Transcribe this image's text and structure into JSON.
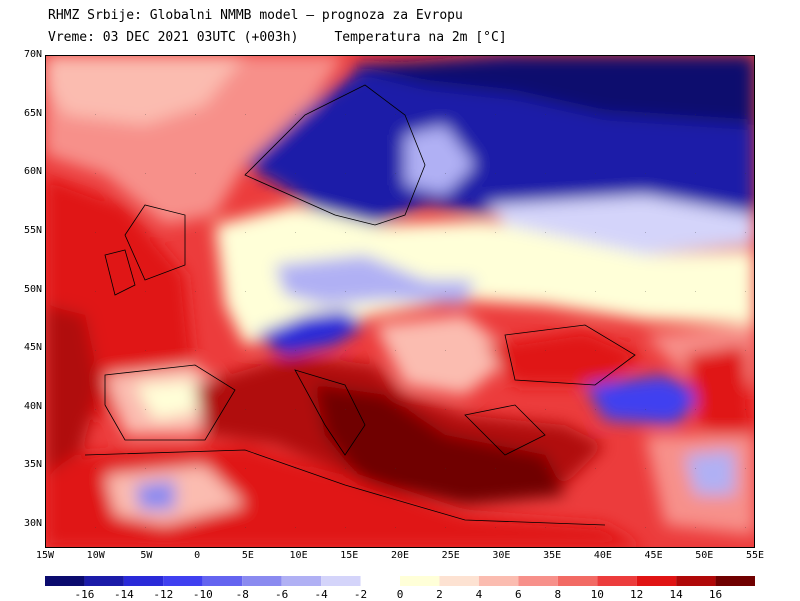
{
  "header": {
    "line1": "RHMZ Srbije: Globalni NMMB model – prognoza za Evropu",
    "line2_time": "Vreme: 03 DEC 2021 03UTC (+003h)",
    "line2_param": "Temperatura na 2m [°C]"
  },
  "axes": {
    "lat_labels": [
      "70N",
      "65N",
      "60N",
      "55N",
      "50N",
      "45N",
      "40N",
      "35N",
      "30N"
    ],
    "lon_labels": [
      "15W",
      "10W",
      "5W",
      "0",
      "5E",
      "10E",
      "15E",
      "20E",
      "25E",
      "30E",
      "35E",
      "40E",
      "45E",
      "50E",
      "55E"
    ]
  },
  "colorbar": {
    "labels": [
      "-16",
      "-14",
      "-12",
      "-10",
      "-8",
      "-6",
      "-4",
      "-2",
      "0",
      "2",
      "4",
      "6",
      "8",
      "10",
      "12",
      "14",
      "16"
    ],
    "colors": [
      "#0b0b6e",
      "#1b1ba8",
      "#2a2ad8",
      "#4040f0",
      "#6464f0",
      "#8a8af0",
      "#b0b0f4",
      "#d4d4fa",
      "#ffffd8",
      "#fde2d2",
      "#fbbcb0",
      "#f7908a",
      "#f26a64",
      "#ec3c3c",
      "#e01414",
      "#b00808",
      "#700000"
    ]
  },
  "map": {
    "sea_color": "#ec3c3c",
    "regions": [
      {
        "name": "scandinavia-cold",
        "color": "#1b1ba8"
      },
      {
        "name": "arctic-cold",
        "color": "#0b0b6e"
      },
      {
        "name": "central-europe-mild",
        "color": "#ffffd8"
      },
      {
        "name": "alps-cold",
        "color": "#2a2ad8"
      },
      {
        "name": "mediterranean-warm",
        "color": "#700000"
      },
      {
        "name": "atlantic-warm",
        "color": "#e01414"
      },
      {
        "name": "black-sea-warm",
        "color": "#e01414"
      },
      {
        "name": "turkey-cold",
        "color": "#4040f0"
      }
    ]
  }
}
